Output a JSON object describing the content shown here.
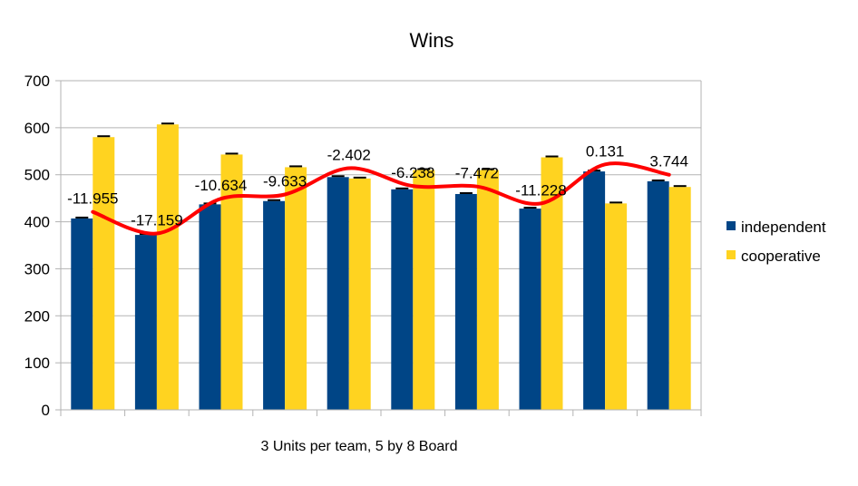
{
  "chart_data": {
    "type": "bar",
    "title": "Wins",
    "xlabel": "3 Units per team, 5 by 8 Board",
    "ylabel": "",
    "ylim": [
      0,
      700
    ],
    "yticks": [
      0,
      100,
      200,
      300,
      400,
      500,
      600,
      700
    ],
    "grid": true,
    "legend_position": "right",
    "categories": [
      "",
      "",
      "",
      "",
      "",
      "",
      "",
      "",
      "",
      ""
    ],
    "series": [
      {
        "name": "independent",
        "color": "#004586",
        "values": [
          407,
          372,
          437,
          444,
          495,
          469,
          459,
          428,
          507,
          486
        ]
      },
      {
        "name": "cooperative",
        "color": "#ffd320",
        "values": [
          580,
          607,
          543,
          516,
          492,
          510,
          510,
          537,
          439,
          474
        ]
      }
    ],
    "error_bars": "small",
    "overlay_line": {
      "color": "#ff0000",
      "smooth": true,
      "values": [
        421,
        375,
        449,
        458,
        514,
        476,
        475,
        439,
        522,
        500
      ],
      "labels": [
        "-11.955",
        "-17.159",
        "-10.634",
        "-9.633",
        "-2.402",
        "-6.238",
        "-7.472",
        "-11.228",
        "0.131",
        "3.744"
      ]
    }
  }
}
